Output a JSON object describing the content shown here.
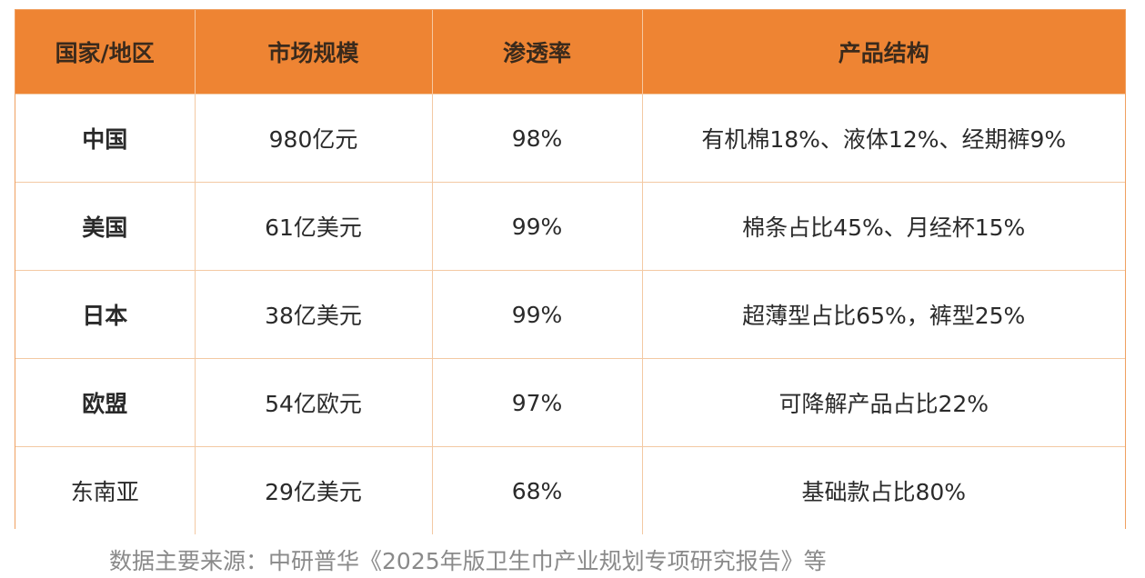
{
  "table": {
    "headers": [
      "国家/地区",
      "市场规模",
      "渗透率",
      "产品结构"
    ],
    "rows": [
      {
        "country": "中国",
        "market": "980亿元",
        "penetration": "98%",
        "structure": "有机棉18%、液体12%、经期裤9%"
      },
      {
        "country": "美国",
        "market": "61亿美元",
        "penetration": "99%",
        "structure": "棉条占比45%、月经杯15%"
      },
      {
        "country": "日本",
        "market": "38亿美元",
        "penetration": "99%",
        "structure": "超薄型占比65%，裤型25%"
      },
      {
        "country": "欧盟",
        "market": "54亿欧元",
        "penetration": "97%",
        "structure": "可降解产品占比22%"
      },
      {
        "country": "东南亚",
        "market": "29亿美元",
        "penetration": "68%",
        "structure": "基础款占比80%"
      }
    ]
  },
  "source": "数据主要来源：中研普华《2025年版卫生巾产业规划专项研究报告》等",
  "colors": {
    "header_bg": "#ee8433",
    "border": "#f3c9a3"
  }
}
